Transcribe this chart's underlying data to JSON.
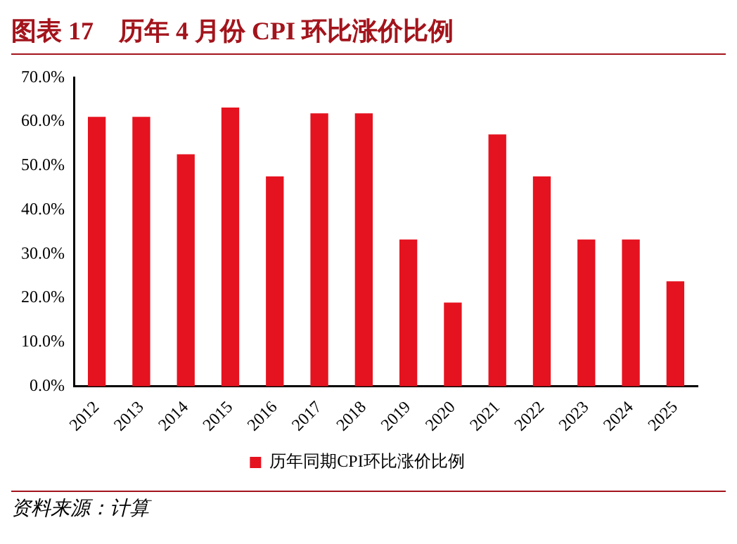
{
  "chart_data": {
    "type": "bar",
    "title": "图表 17　历年 4 月份 CPI 环比涨价比例",
    "categories": [
      "2012",
      "2013",
      "2014",
      "2015",
      "2016",
      "2017",
      "2018",
      "2019",
      "2020",
      "2021",
      "2022",
      "2023",
      "2024",
      "2025"
    ],
    "series": [
      {
        "name": "历年同期CPI环比涨价比例",
        "color": "#e5131f",
        "values": [
          61.1,
          61.1,
          52.6,
          63.2,
          47.6,
          61.9,
          61.9,
          33.3,
          19.0,
          57.1,
          47.6,
          33.3,
          33.3,
          23.8
        ]
      }
    ],
    "ylim": [
      0,
      70
    ],
    "yticks": [
      {
        "value": 0,
        "label": "0.0%"
      },
      {
        "value": 10,
        "label": "10.0%"
      },
      {
        "value": 20,
        "label": "20.0%"
      },
      {
        "value": 30,
        "label": "30.0%"
      },
      {
        "value": 40,
        "label": "40.0%"
      },
      {
        "value": 50,
        "label": "50.0%"
      },
      {
        "value": 60,
        "label": "60.0%"
      },
      {
        "value": 70,
        "label": "70.0%"
      }
    ],
    "grid": false,
    "legend": "bottom",
    "annotations": [
      "资料来源：计算"
    ]
  }
}
